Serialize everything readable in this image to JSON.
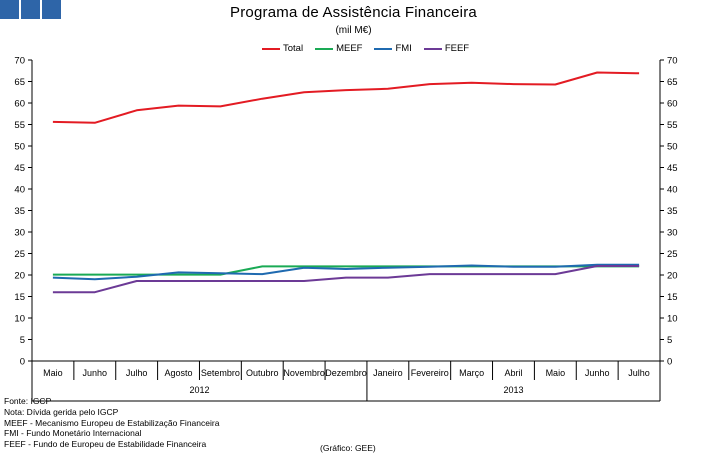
{
  "header": {
    "squares_color": "#2e65a8"
  },
  "chart_data": {
    "type": "line",
    "title": "Programa de Assistência Financeira",
    "subtitle": "(mil M€)",
    "categories": [
      "Maio",
      "Junho",
      "Julho",
      "Agosto",
      "Setembro",
      "Outubro",
      "Novembro",
      "Dezembro",
      "Janeiro",
      "Fevereiro",
      "Março",
      "Abril",
      "Maio",
      "Junho",
      "Julho"
    ],
    "year_groups": [
      {
        "label": "2012",
        "start": 0,
        "end": 7
      },
      {
        "label": "2013",
        "start": 8,
        "end": 14
      }
    ],
    "ylim": [
      0,
      70
    ],
    "ytick_step": 5,
    "yticks": [
      "0",
      "5",
      "10",
      "15",
      "20",
      "25",
      "30",
      "35",
      "40",
      "45",
      "50",
      "55",
      "60",
      "65",
      "70"
    ],
    "legend_position": "top",
    "series": [
      {
        "name": "Total",
        "color": "#e31b23",
        "values": [
          55.6,
          55.4,
          58.3,
          59.4,
          59.2,
          61.0,
          62.5,
          63.0,
          63.3,
          64.4,
          64.7,
          64.4,
          64.3,
          67.1,
          66.9
        ]
      },
      {
        "name": "MEEF",
        "color": "#1aaa55",
        "values": [
          20.1,
          20.1,
          20.1,
          20.1,
          20.1,
          22.0,
          22.0,
          22.0,
          22.0,
          22.0,
          22.0,
          22.0,
          22.0,
          22.0,
          22.0
        ]
      },
      {
        "name": "FMI",
        "color": "#1f6ab0",
        "values": [
          19.4,
          19.0,
          19.6,
          20.6,
          20.4,
          20.2,
          21.7,
          21.4,
          21.7,
          21.9,
          22.2,
          21.9,
          21.9,
          22.4,
          22.4
        ]
      },
      {
        "name": "FEEF",
        "color": "#6c3a96",
        "values": [
          16.0,
          16.0,
          18.6,
          18.6,
          18.6,
          18.6,
          18.6,
          19.4,
          19.4,
          20.2,
          20.2,
          20.2,
          20.2,
          22.1,
          22.1
        ]
      }
    ]
  },
  "notes": [
    "Fonte: IGCP",
    "Nota: Dívida gerida pelo IGCP",
    "MEEF - Mecanismo Europeu de Estabilização Financeira",
    "FMI - Fundo Monetário Internacional",
    "FEEF - Fundo de Europeu de Estabilidade Financeira"
  ],
  "credit": "(Gráfico: GEE)"
}
